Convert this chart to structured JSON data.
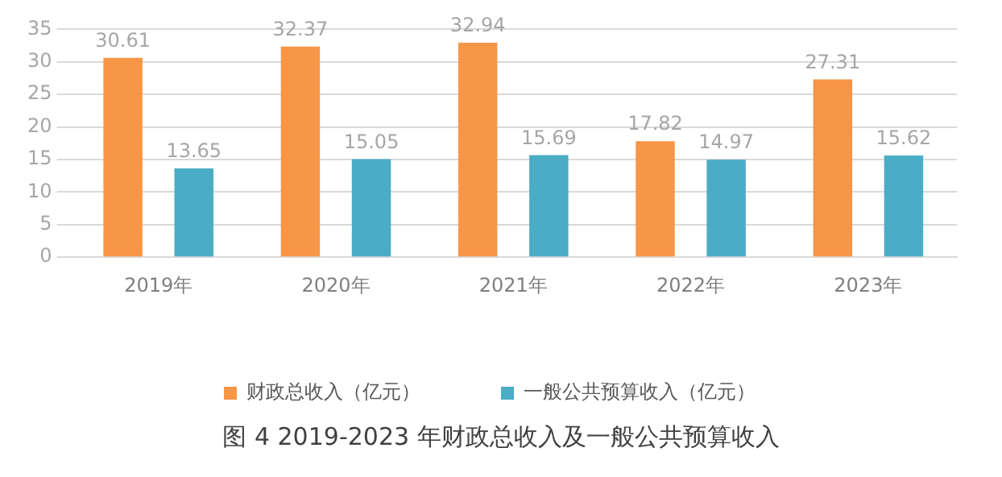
{
  "chart_data": {
    "type": "bar",
    "title": "图 4 2019-2023 年财政总收入及一般公共预算收入",
    "categories": [
      "2019年",
      "2020年",
      "2021年",
      "2022年",
      "2023年"
    ],
    "series": [
      {
        "name": "财政总收入（亿元）",
        "color": "#f79646",
        "values": [
          30.61,
          32.37,
          32.94,
          17.82,
          27.31
        ]
      },
      {
        "name": "一般公共预算收入（亿元）",
        "color": "#4bacc6",
        "values": [
          13.65,
          15.05,
          15.69,
          14.97,
          15.62
        ]
      }
    ],
    "ylim": [
      0,
      35
    ],
    "yticks": [
      0,
      5,
      10,
      15,
      20,
      25,
      30,
      35
    ],
    "grid": "y",
    "legend": "bottom",
    "data_labels": true
  }
}
